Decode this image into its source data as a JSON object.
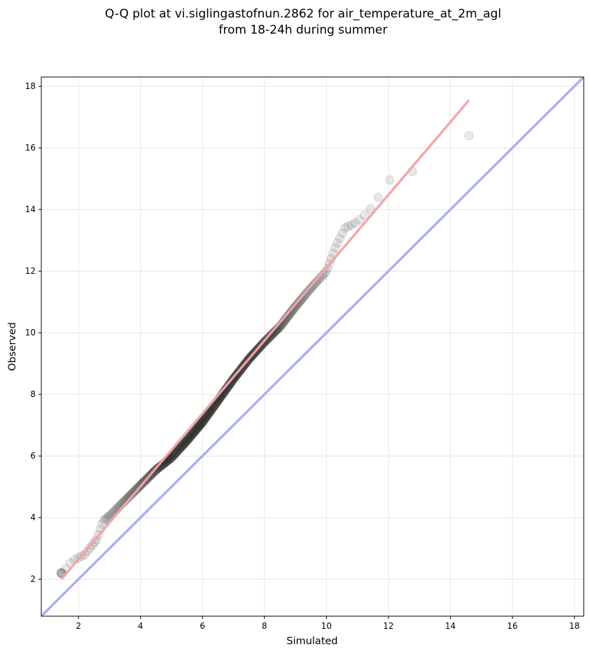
{
  "chart_data": {
    "type": "scatter",
    "title_lines": [
      "Q-Q plot at vi.siglingastofnun.2862 for air_temperature_at_2m_agl",
      "from 18-24h during summer"
    ],
    "xlabel": "Simulated",
    "ylabel": "Observed",
    "xlim": [
      0.8,
      18.3
    ],
    "ylim": [
      0.8,
      18.3
    ],
    "xticks": [
      2,
      4,
      6,
      8,
      10,
      12,
      14,
      16,
      18
    ],
    "yticks": [
      2,
      4,
      6,
      8,
      10,
      12,
      14,
      16,
      18
    ],
    "grid": true,
    "reference_line": {
      "type": "identity",
      "color": "#aab0f0"
    },
    "fit_line": {
      "x": [
        1.45,
        14.6
      ],
      "y": [
        2.0,
        17.55
      ],
      "color": "#f4a3a3"
    },
    "quantile_curve": {
      "x": [
        1.45,
        1.8,
        2.2,
        2.6,
        2.8,
        3.0,
        3.5,
        4.0,
        4.5,
        5.0,
        5.5,
        6.0,
        6.5,
        7.0,
        7.5,
        8.0,
        8.5,
        9.0,
        9.5,
        10.0,
        10.3,
        10.6,
        11.0,
        11.5,
        12.0,
        12.5,
        13.0,
        13.3,
        13.6,
        14.6
      ],
      "y": [
        2.2,
        2.6,
        2.8,
        3.3,
        3.9,
        4.05,
        4.55,
        5.05,
        5.55,
        5.95,
        6.5,
        7.1,
        7.8,
        8.5,
        9.15,
        9.7,
        10.2,
        10.85,
        11.45,
        12.0,
        12.8,
        13.4,
        13.6,
        14.1,
        14.95,
        15.05,
        15.4,
        15.8,
        16.4,
        16.4
      ]
    },
    "points": {
      "count": 420,
      "color": "#000000"
    }
  },
  "colors": {
    "points": "#000000",
    "identity_line": "#aab0f0",
    "fit_line": "#f4a3a3",
    "grid": "#e6e6e6"
  }
}
